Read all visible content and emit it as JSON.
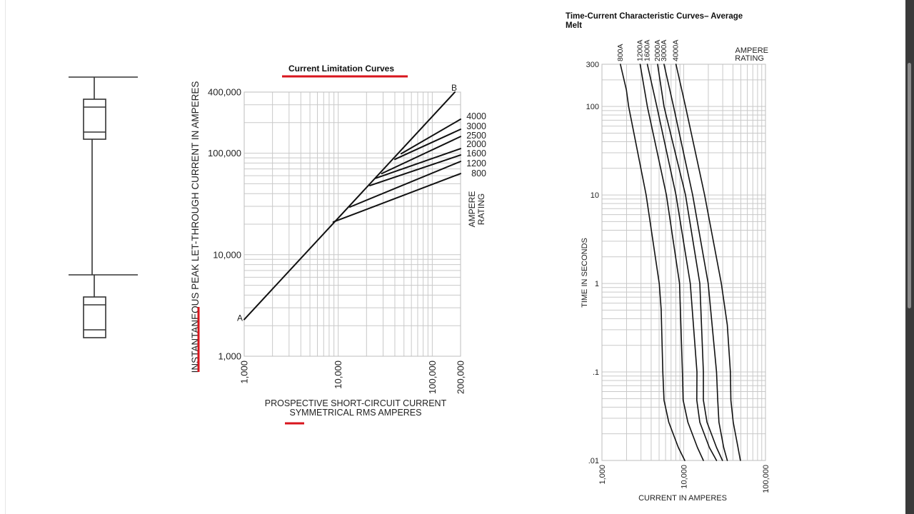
{
  "chart_data": [
    {
      "type": "line",
      "title": "Current Limitation Curves",
      "xlabel": "PROSPECTIVE SHORT-CIRCUIT CURRENT",
      "xlabel_line2": "SYMMETRICAL RMS AMPERES",
      "ylabel": "INSTANTANEOUS PEAK LET-THROUGH CURRENT IN AMPERES",
      "x_scale": "log",
      "y_scale": "log",
      "xlim": [
        1000,
        200000
      ],
      "ylim": [
        1000,
        400000
      ],
      "x_ticks": [
        {
          "value": 1000,
          "label": "1,000"
        },
        {
          "value": 10000,
          "label": "10,000"
        },
        {
          "value": 100000,
          "label": "100,000"
        },
        {
          "value": 200000,
          "label": "200,000"
        }
      ],
      "y_ticks": [
        {
          "value": 1000,
          "label": "1,000"
        },
        {
          "value": 10000,
          "label": "10,000"
        },
        {
          "value": 100000,
          "label": "100,000"
        },
        {
          "value": 400000,
          "label": "400,000"
        }
      ],
      "grid": true,
      "point_labels": {
        "start": "A",
        "end": "B"
      },
      "main_line": [
        [
          1000,
          2300
        ],
        [
          174000,
          400000
        ]
      ],
      "legend_title": [
        "AMPERE",
        "RATING"
      ],
      "series": [
        {
          "name": "4000",
          "values": [
            [
              46800,
              99000
            ],
            [
              200000,
              216000
            ]
          ]
        },
        {
          "name": "3000",
          "values": [
            [
              40000,
              87000
            ],
            [
              200000,
              172000
            ]
          ]
        },
        {
          "name": "2500",
          "values": [
            [
              29000,
              63000
            ],
            [
              200000,
              146000
            ]
          ]
        },
        {
          "name": "2000",
          "values": [
            [
              25000,
              56700
            ],
            [
              200000,
              111000
            ]
          ]
        },
        {
          "name": "1600",
          "values": [
            [
              21700,
              48000
            ],
            [
              200000,
              96000
            ]
          ]
        },
        {
          "name": "1200",
          "values": [
            [
              13300,
              29500
            ],
            [
              200000,
              83000
            ]
          ]
        },
        {
          "name": "800",
          "values": [
            [
              8850,
              21000
            ],
            [
              200000,
              63000
            ]
          ]
        }
      ]
    },
    {
      "type": "line",
      "title": "Time-Current Characteristic Curves– Average",
      "title_line2": "Melt",
      "xlabel": "CURRENT IN AMPERES",
      "ylabel": "TIME IN SECONDS",
      "x_scale": "log",
      "y_scale": "log",
      "xlim": [
        1000,
        100000
      ],
      "ylim": [
        0.01,
        300
      ],
      "x_ticks": [
        {
          "value": 1000,
          "label": "1,000"
        },
        {
          "value": 10000,
          "label": "10,000"
        },
        {
          "value": 100000,
          "label": "100,000"
        }
      ],
      "y_ticks": [
        {
          "value": 300,
          "label": "300"
        },
        {
          "value": 100,
          "label": "100"
        },
        {
          "value": 10,
          "label": "10"
        },
        {
          "value": 1,
          "label": "1"
        },
        {
          "value": 0.1,
          "label": ".1"
        },
        {
          "value": 0.01,
          "label": ".01"
        }
      ],
      "grid": true,
      "legend_title": [
        "AMPERE",
        "RATING"
      ],
      "series": [
        {
          "name": "800A",
          "values": [
            [
              1680,
              300
            ],
            [
              1990,
              154
            ],
            [
              2120,
              100
            ],
            [
              3470,
              10
            ],
            [
              5020,
              1
            ],
            [
              5300,
              0.51
            ],
            [
              5550,
              0.1
            ],
            [
              5740,
              0.048
            ],
            [
              6570,
              0.027
            ],
            [
              8600,
              0.014
            ],
            [
              10300,
              0.01
            ]
          ]
        },
        {
          "name": "1200A",
          "values": [
            [
              2930,
              300
            ],
            [
              3590,
              100
            ],
            [
              6140,
              10
            ],
            [
              8890,
              1
            ],
            [
              9640,
              0.1
            ],
            [
              9840,
              0.048
            ],
            [
              11250,
              0.027
            ],
            [
              14720,
              0.014
            ],
            [
              17400,
              0.01
            ]
          ]
        },
        {
          "name": "1600A",
          "values": [
            [
              3590,
              300
            ],
            [
              4690,
              100
            ],
            [
              8040,
              10
            ],
            [
              12030,
              1
            ],
            [
              14520,
              0.1
            ],
            [
              14450,
              0.048
            ],
            [
              15740,
              0.027
            ],
            [
              20600,
              0.014
            ],
            [
              25200,
              0.01
            ]
          ]
        },
        {
          "name": "2000A",
          "values": [
            [
              4790,
              300
            ],
            [
              5740,
              100
            ],
            [
              10520,
              10
            ],
            [
              15740,
              1
            ],
            [
              17400,
              0.1
            ],
            [
              17400,
              0.048
            ],
            [
              19270,
              0.027
            ],
            [
              25200,
              0.014
            ],
            [
              29770,
              0.01
            ]
          ]
        },
        {
          "name": "3000A",
          "values": [
            [
              5740,
              300
            ],
            [
              7510,
              100
            ],
            [
              12860,
              10
            ],
            [
              19920,
              1
            ],
            [
              25200,
              0.1
            ],
            [
              26060,
              0.048
            ],
            [
              26980,
              0.027
            ],
            [
              30830,
              0.014
            ],
            [
              34120,
              0.01
            ]
          ]
        },
        {
          "name": "4000A",
          "values": [
            [
              8040,
              300
            ],
            [
              10520,
              100
            ],
            [
              18010,
              10
            ],
            [
              28840,
              1
            ],
            [
              34120,
              0.34
            ],
            [
              37240,
              0.1
            ],
            [
              37740,
              0.048
            ],
            [
              40340,
              0.027
            ],
            [
              46140,
              0.014
            ],
            [
              49350,
              0.01
            ]
          ]
        }
      ]
    }
  ],
  "colors": {
    "annotation": "#d8151d",
    "curve": "#111111",
    "grid": "#c9c9c9",
    "scrollbar": "#3a3a3a"
  }
}
